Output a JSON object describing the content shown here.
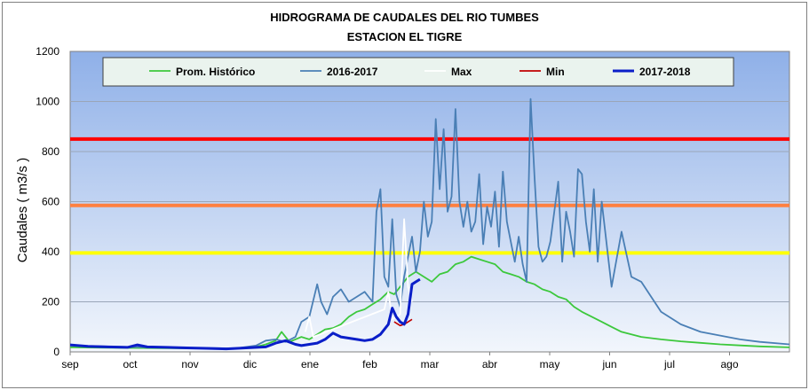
{
  "chart_data": {
    "type": "line",
    "title": "HIDROGRAMA DE CAUDALES DEL RIO  TUMBES",
    "subtitle": "ESTACION  EL TIGRE",
    "xlabel": "",
    "ylabel": "Caudales ( m3/s )",
    "ylim": [
      0,
      1200
    ],
    "yticks": [
      "0",
      "200",
      "400",
      "600",
      "800",
      "1000",
      "1200"
    ],
    "xticks": [
      "sep",
      "oct",
      "nov",
      "dic",
      "ene",
      "feb",
      "mar",
      "abr",
      "may",
      "jun",
      "jul",
      "ago"
    ],
    "x_unit": "day of hydrological year (1 = 1 sep)",
    "grid": true,
    "legend": "top",
    "colors": {
      "plot_bg_top": "#8fb0e8",
      "plot_bg_bottom": "#f2f6fc",
      "gridline": "#9aa6b8"
    },
    "thresholds": [
      {
        "value": 850,
        "color": "#ff0000"
      },
      {
        "value": 585,
        "color": "#ff8040"
      },
      {
        "value": 395,
        "color": "#ffff00"
      }
    ],
    "series": [
      {
        "name": "Prom. Histórico",
        "color": "#3cc83c",
        "x": [
          1,
          30,
          60,
          90,
          95,
          100,
          105,
          108,
          112,
          118,
          122,
          126,
          130,
          134,
          138,
          142,
          146,
          150,
          154,
          158,
          162,
          165,
          168,
          172,
          176,
          180,
          184,
          188,
          192,
          196,
          200,
          204,
          208,
          212,
          216,
          220,
          224,
          228,
          232,
          236,
          240,
          244,
          248,
          252,
          256,
          260,
          265,
          270,
          275,
          280,
          285,
          290,
          300,
          310,
          320,
          330,
          340,
          350,
          365
        ],
        "y": [
          18,
          16,
          14,
          15,
          20,
          30,
          45,
          80,
          40,
          60,
          50,
          70,
          90,
          95,
          110,
          140,
          160,
          170,
          190,
          210,
          240,
          230,
          260,
          300,
          320,
          300,
          280,
          310,
          320,
          350,
          360,
          380,
          370,
          360,
          350,
          320,
          310,
          300,
          280,
          270,
          250,
          240,
          220,
          210,
          180,
          160,
          140,
          120,
          100,
          80,
          70,
          60,
          50,
          42,
          36,
          30,
          26,
          22,
          18
        ]
      },
      {
        "name": "2016-2017",
        "color": "#4a7fb5",
        "x": [
          1,
          30,
          60,
          85,
          95,
          100,
          105,
          110,
          115,
          118,
          122,
          126,
          128,
          131,
          134,
          138,
          142,
          146,
          150,
          154,
          156,
          158,
          160,
          162,
          164,
          166,
          168,
          170,
          172,
          174,
          176,
          178,
          180,
          182,
          184,
          186,
          188,
          190,
          192,
          194,
          196,
          198,
          200,
          202,
          204,
          206,
          208,
          210,
          212,
          214,
          216,
          218,
          220,
          222,
          224,
          226,
          228,
          230,
          232,
          234,
          236,
          238,
          240,
          242,
          244,
          246,
          248,
          250,
          252,
          254,
          256,
          258,
          260,
          262,
          264,
          266,
          268,
          270,
          275,
          280,
          285,
          290,
          300,
          310,
          320,
          330,
          340,
          350,
          365
        ],
        "y": [
          25,
          20,
          16,
          14,
          25,
          45,
          50,
          40,
          60,
          120,
          140,
          270,
          200,
          150,
          220,
          250,
          200,
          220,
          240,
          200,
          560,
          650,
          300,
          260,
          530,
          230,
          180,
          300,
          380,
          460,
          320,
          400,
          600,
          460,
          520,
          930,
          650,
          890,
          560,
          620,
          970,
          600,
          500,
          600,
          480,
          520,
          710,
          430,
          580,
          500,
          640,
          420,
          720,
          520,
          440,
          360,
          460,
          350,
          280,
          1010,
          700,
          420,
          360,
          380,
          440,
          560,
          680,
          360,
          560,
          480,
          380,
          730,
          710,
          520,
          400,
          650,
          360,
          600,
          260,
          480,
          300,
          280,
          160,
          110,
          80,
          65,
          50,
          40,
          30
        ]
      },
      {
        "name": "Max",
        "color": "#ffffff",
        "x": [
          120,
          122,
          124,
          160,
          162,
          164,
          168,
          170,
          172,
          174
        ],
        "y": [
          80,
          140,
          60,
          170,
          240,
          130,
          150,
          530,
          260,
          200
        ]
      },
      {
        "name": "Min",
        "color": "#c00000",
        "x": [
          165,
          168,
          170,
          174
        ],
        "y": [
          120,
          105,
          110,
          130
        ]
      },
      {
        "name": "2017-2018",
        "color": "#0a1ec8",
        "x": [
          1,
          10,
          20,
          30,
          35,
          40,
          50,
          60,
          70,
          80,
          90,
          100,
          105,
          110,
          115,
          118,
          122,
          126,
          130,
          134,
          138,
          142,
          146,
          150,
          154,
          158,
          162,
          164,
          166,
          168,
          170,
          172,
          174,
          176,
          178
        ],
        "y": [
          28,
          22,
          20,
          18,
          28,
          20,
          18,
          16,
          14,
          12,
          16,
          20,
          35,
          45,
          30,
          25,
          30,
          35,
          50,
          75,
          60,
          55,
          50,
          45,
          50,
          70,
          110,
          175,
          140,
          120,
          110,
          150,
          270,
          280,
          290
        ]
      }
    ]
  }
}
